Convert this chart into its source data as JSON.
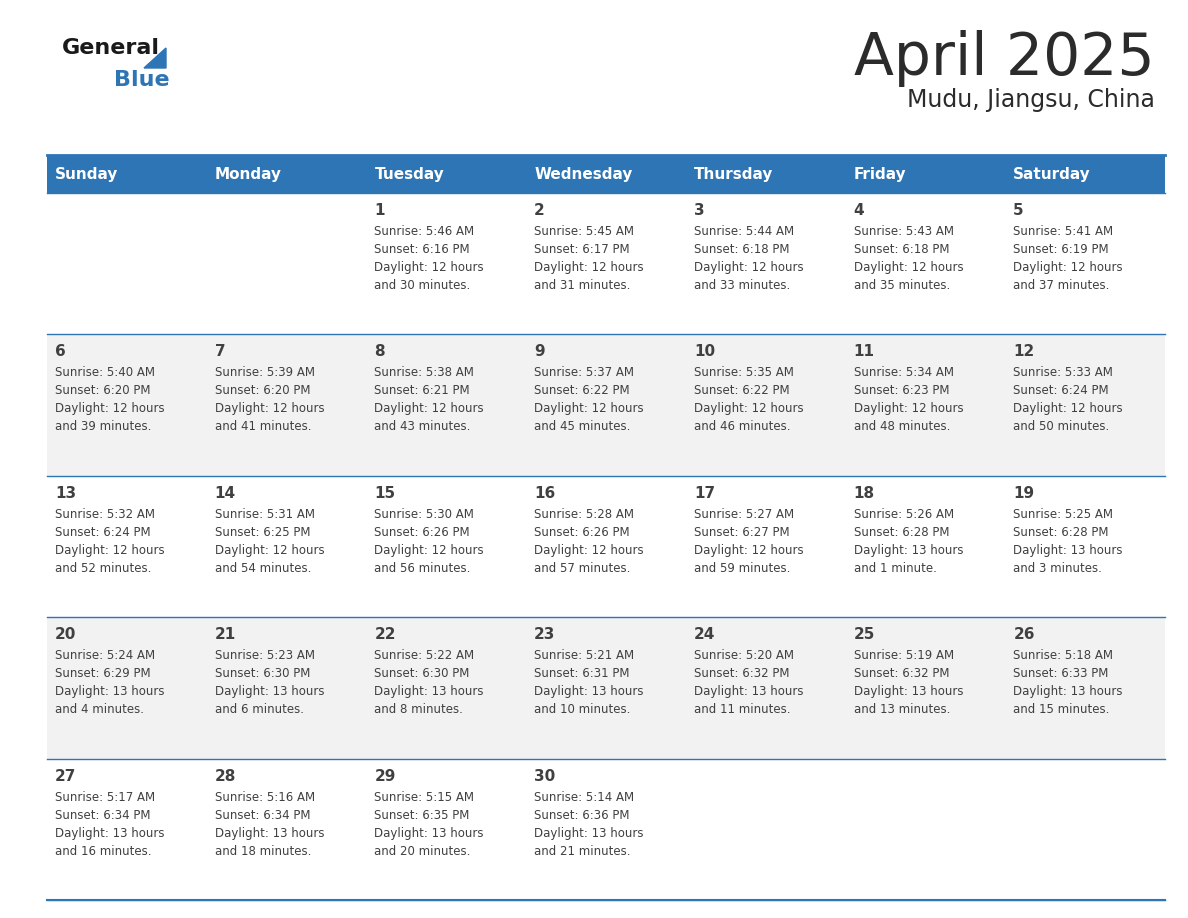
{
  "title": "April 2025",
  "subtitle": "Mudu, Jiangsu, China",
  "header_color": "#2E75B6",
  "header_text_color": "#FFFFFF",
  "cell_bg_white": "#FFFFFF",
  "cell_bg_gray": "#F2F2F2",
  "divider_color": "#2E75B6",
  "days_of_week": [
    "Sunday",
    "Monday",
    "Tuesday",
    "Wednesday",
    "Thursday",
    "Friday",
    "Saturday"
  ],
  "calendar": [
    [
      {
        "day": "",
        "line1": "",
        "line2": "",
        "line3": "",
        "line4": ""
      },
      {
        "day": "",
        "line1": "",
        "line2": "",
        "line3": "",
        "line4": ""
      },
      {
        "day": "1",
        "line1": "Sunrise: 5:46 AM",
        "line2": "Sunset: 6:16 PM",
        "line3": "Daylight: 12 hours",
        "line4": "and 30 minutes."
      },
      {
        "day": "2",
        "line1": "Sunrise: 5:45 AM",
        "line2": "Sunset: 6:17 PM",
        "line3": "Daylight: 12 hours",
        "line4": "and 31 minutes."
      },
      {
        "day": "3",
        "line1": "Sunrise: 5:44 AM",
        "line2": "Sunset: 6:18 PM",
        "line3": "Daylight: 12 hours",
        "line4": "and 33 minutes."
      },
      {
        "day": "4",
        "line1": "Sunrise: 5:43 AM",
        "line2": "Sunset: 6:18 PM",
        "line3": "Daylight: 12 hours",
        "line4": "and 35 minutes."
      },
      {
        "day": "5",
        "line1": "Sunrise: 5:41 AM",
        "line2": "Sunset: 6:19 PM",
        "line3": "Daylight: 12 hours",
        "line4": "and 37 minutes."
      }
    ],
    [
      {
        "day": "6",
        "line1": "Sunrise: 5:40 AM",
        "line2": "Sunset: 6:20 PM",
        "line3": "Daylight: 12 hours",
        "line4": "and 39 minutes."
      },
      {
        "day": "7",
        "line1": "Sunrise: 5:39 AM",
        "line2": "Sunset: 6:20 PM",
        "line3": "Daylight: 12 hours",
        "line4": "and 41 minutes."
      },
      {
        "day": "8",
        "line1": "Sunrise: 5:38 AM",
        "line2": "Sunset: 6:21 PM",
        "line3": "Daylight: 12 hours",
        "line4": "and 43 minutes."
      },
      {
        "day": "9",
        "line1": "Sunrise: 5:37 AM",
        "line2": "Sunset: 6:22 PM",
        "line3": "Daylight: 12 hours",
        "line4": "and 45 minutes."
      },
      {
        "day": "10",
        "line1": "Sunrise: 5:35 AM",
        "line2": "Sunset: 6:22 PM",
        "line3": "Daylight: 12 hours",
        "line4": "and 46 minutes."
      },
      {
        "day": "11",
        "line1": "Sunrise: 5:34 AM",
        "line2": "Sunset: 6:23 PM",
        "line3": "Daylight: 12 hours",
        "line4": "and 48 minutes."
      },
      {
        "day": "12",
        "line1": "Sunrise: 5:33 AM",
        "line2": "Sunset: 6:24 PM",
        "line3": "Daylight: 12 hours",
        "line4": "and 50 minutes."
      }
    ],
    [
      {
        "day": "13",
        "line1": "Sunrise: 5:32 AM",
        "line2": "Sunset: 6:24 PM",
        "line3": "Daylight: 12 hours",
        "line4": "and 52 minutes."
      },
      {
        "day": "14",
        "line1": "Sunrise: 5:31 AM",
        "line2": "Sunset: 6:25 PM",
        "line3": "Daylight: 12 hours",
        "line4": "and 54 minutes."
      },
      {
        "day": "15",
        "line1": "Sunrise: 5:30 AM",
        "line2": "Sunset: 6:26 PM",
        "line3": "Daylight: 12 hours",
        "line4": "and 56 minutes."
      },
      {
        "day": "16",
        "line1": "Sunrise: 5:28 AM",
        "line2": "Sunset: 6:26 PM",
        "line3": "Daylight: 12 hours",
        "line4": "and 57 minutes."
      },
      {
        "day": "17",
        "line1": "Sunrise: 5:27 AM",
        "line2": "Sunset: 6:27 PM",
        "line3": "Daylight: 12 hours",
        "line4": "and 59 minutes."
      },
      {
        "day": "18",
        "line1": "Sunrise: 5:26 AM",
        "line2": "Sunset: 6:28 PM",
        "line3": "Daylight: 13 hours",
        "line4": "and 1 minute."
      },
      {
        "day": "19",
        "line1": "Sunrise: 5:25 AM",
        "line2": "Sunset: 6:28 PM",
        "line3": "Daylight: 13 hours",
        "line4": "and 3 minutes."
      }
    ],
    [
      {
        "day": "20",
        "line1": "Sunrise: 5:24 AM",
        "line2": "Sunset: 6:29 PM",
        "line3": "Daylight: 13 hours",
        "line4": "and 4 minutes."
      },
      {
        "day": "21",
        "line1": "Sunrise: 5:23 AM",
        "line2": "Sunset: 6:30 PM",
        "line3": "Daylight: 13 hours",
        "line4": "and 6 minutes."
      },
      {
        "day": "22",
        "line1": "Sunrise: 5:22 AM",
        "line2": "Sunset: 6:30 PM",
        "line3": "Daylight: 13 hours",
        "line4": "and 8 minutes."
      },
      {
        "day": "23",
        "line1": "Sunrise: 5:21 AM",
        "line2": "Sunset: 6:31 PM",
        "line3": "Daylight: 13 hours",
        "line4": "and 10 minutes."
      },
      {
        "day": "24",
        "line1": "Sunrise: 5:20 AM",
        "line2": "Sunset: 6:32 PM",
        "line3": "Daylight: 13 hours",
        "line4": "and 11 minutes."
      },
      {
        "day": "25",
        "line1": "Sunrise: 5:19 AM",
        "line2": "Sunset: 6:32 PM",
        "line3": "Daylight: 13 hours",
        "line4": "and 13 minutes."
      },
      {
        "day": "26",
        "line1": "Sunrise: 5:18 AM",
        "line2": "Sunset: 6:33 PM",
        "line3": "Daylight: 13 hours",
        "line4": "and 15 minutes."
      }
    ],
    [
      {
        "day": "27",
        "line1": "Sunrise: 5:17 AM",
        "line2": "Sunset: 6:34 PM",
        "line3": "Daylight: 13 hours",
        "line4": "and 16 minutes."
      },
      {
        "day": "28",
        "line1": "Sunrise: 5:16 AM",
        "line2": "Sunset: 6:34 PM",
        "line3": "Daylight: 13 hours",
        "line4": "and 18 minutes."
      },
      {
        "day": "29",
        "line1": "Sunrise: 5:15 AM",
        "line2": "Sunset: 6:35 PM",
        "line3": "Daylight: 13 hours",
        "line4": "and 20 minutes."
      },
      {
        "day": "30",
        "line1": "Sunrise: 5:14 AM",
        "line2": "Sunset: 6:36 PM",
        "line3": "Daylight: 13 hours",
        "line4": "and 21 minutes."
      },
      {
        "day": "",
        "line1": "",
        "line2": "",
        "line3": "",
        "line4": ""
      },
      {
        "day": "",
        "line1": "",
        "line2": "",
        "line3": "",
        "line4": ""
      },
      {
        "day": "",
        "line1": "",
        "line2": "",
        "line3": "",
        "line4": ""
      }
    ]
  ],
  "bg_color": "#FFFFFF",
  "text_color": "#404040",
  "title_fontsize": 42,
  "subtitle_fontsize": 17,
  "header_fontsize": 11,
  "day_num_fontsize": 11,
  "cell_text_fontsize": 8.5
}
